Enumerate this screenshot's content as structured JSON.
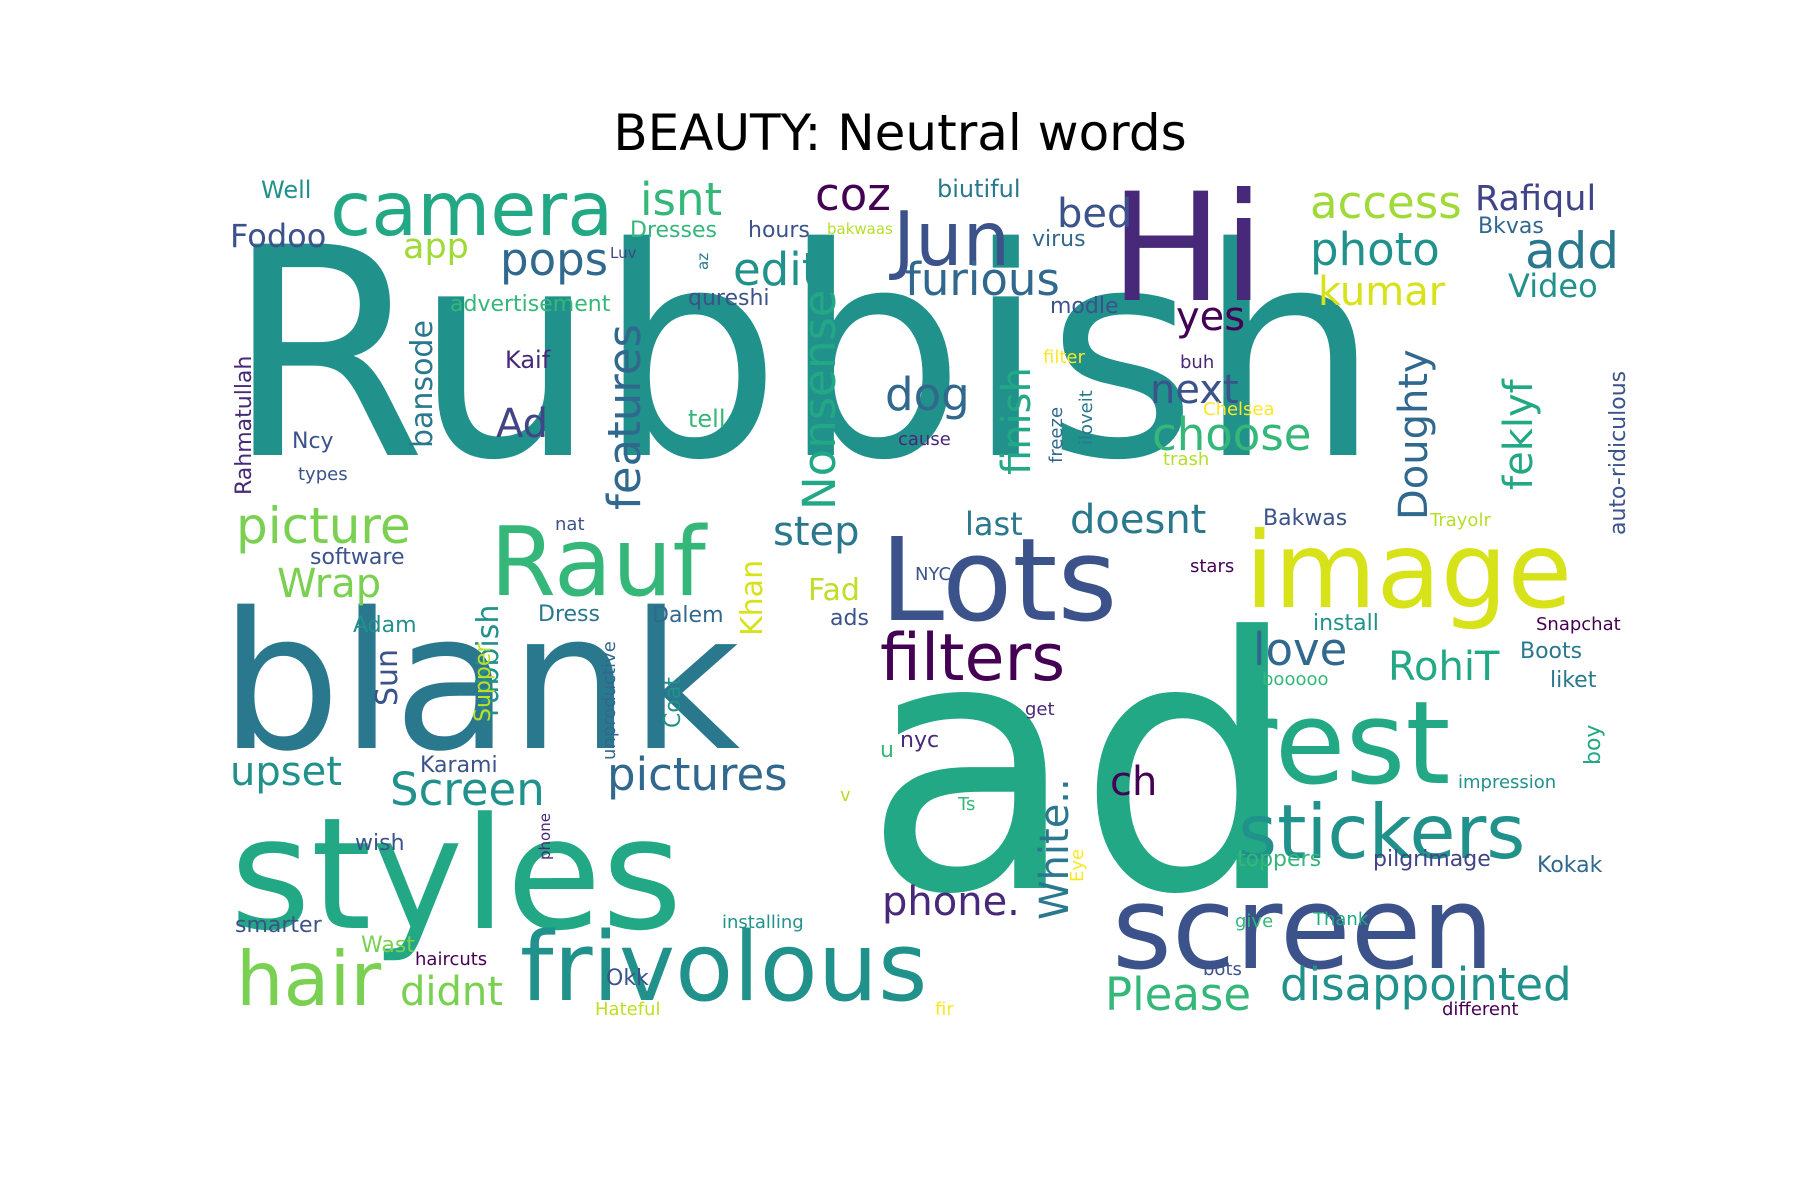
{
  "title": "BEAUTY: Neutral words",
  "words": [
    {
      "text": "Rubbish",
      "color": "#21918c"
    },
    {
      "text": "ad",
      "color": "#22a884"
    },
    {
      "text": "blank",
      "color": "#2a788e"
    },
    {
      "text": "styles",
      "color": "#22a884"
    },
    {
      "text": "Hi",
      "color": "#482878"
    },
    {
      "text": "Lots",
      "color": "#3b528b"
    },
    {
      "text": "image",
      "color": "#d8e219"
    },
    {
      "text": "screen",
      "color": "#3b528b"
    },
    {
      "text": "rest",
      "color": "#22a884"
    },
    {
      "text": "frivolous",
      "color": "#21918c"
    },
    {
      "text": "Rauf",
      "color": "#35b779"
    },
    {
      "text": "camera",
      "color": "#22a884"
    },
    {
      "text": "Jun",
      "color": "#3b528b"
    },
    {
      "text": "stickers",
      "color": "#21918c"
    },
    {
      "text": "hair",
      "color": "#7ad151"
    },
    {
      "text": "filters",
      "color": "#440154"
    },
    {
      "text": "pictures",
      "color": "#31688e"
    },
    {
      "text": "disappointed",
      "color": "#21918c"
    },
    {
      "text": "picture",
      "color": "#7ad151"
    },
    {
      "text": "Screen",
      "color": "#21918c"
    },
    {
      "text": "isnt",
      "color": "#35b779"
    },
    {
      "text": "coz",
      "color": "#440154"
    },
    {
      "text": "access",
      "color": "#a0da39"
    },
    {
      "text": "photo",
      "color": "#21918c"
    },
    {
      "text": "add",
      "color": "#2a788e"
    },
    {
      "text": "furious",
      "color": "#31688e"
    },
    {
      "text": "pops",
      "color": "#31688e"
    },
    {
      "text": "edit",
      "color": "#21918c"
    },
    {
      "text": "bed",
      "color": "#3b528b"
    },
    {
      "text": "Rafiqul",
      "color": "#414487"
    },
    {
      "text": "kumar",
      "color": "#d8e219"
    },
    {
      "text": "choose",
      "color": "#35b779"
    },
    {
      "text": "next",
      "color": "#3b528b"
    },
    {
      "text": "dog",
      "color": "#31688e"
    },
    {
      "text": "yes",
      "color": "#440154"
    },
    {
      "text": "doesnt",
      "color": "#2a788e"
    },
    {
      "text": "love",
      "color": "#31688e"
    },
    {
      "text": "RohiT",
      "color": "#22a884"
    },
    {
      "text": "Please",
      "color": "#35b779"
    },
    {
      "text": "upset",
      "color": "#21918c"
    },
    {
      "text": "phone.",
      "color": "#482878"
    },
    {
      "text": "ch",
      "color": "#440154"
    },
    {
      "text": "step",
      "color": "#2a788e"
    },
    {
      "text": "last",
      "color": "#2a788e"
    },
    {
      "text": "Wrap",
      "color": "#7ad151"
    },
    {
      "text": "didnt",
      "color": "#7ad151"
    },
    {
      "text": "Ad",
      "color": "#414487"
    },
    {
      "text": "app",
      "color": "#a0da39"
    },
    {
      "text": "Fodoo",
      "color": "#3b528b"
    },
    {
      "text": "Video",
      "color": "#21918c"
    },
    {
      "text": "features",
      "color": "#31688e"
    },
    {
      "text": "Nonsense",
      "color": "#22a884"
    },
    {
      "text": "finish",
      "color": "#22a884"
    },
    {
      "text": "White..",
      "color": "#2a788e"
    },
    {
      "text": "Doughty",
      "color": "#31688e"
    },
    {
      "text": "feklyf",
      "color": "#22a884"
    },
    {
      "text": "rubbish",
      "color": "#21918c"
    },
    {
      "text": "bansode",
      "color": "#2a788e"
    },
    {
      "text": "Khan",
      "color": "#d8e219"
    },
    {
      "text": "Sun",
      "color": "#3b528b"
    },
    {
      "text": "Fad",
      "color": "#bddf26"
    },
    {
      "text": "Well",
      "color": "#21918c"
    },
    {
      "text": "biutiful",
      "color": "#2a788e"
    },
    {
      "text": "Dresses",
      "color": "#35b779"
    },
    {
      "text": "hours",
      "color": "#3b528b"
    },
    {
      "text": "bakwaas",
      "color": "#b5de2b"
    },
    {
      "text": "virus",
      "color": "#31688e"
    },
    {
      "text": "Bkvas",
      "color": "#31688e"
    },
    {
      "text": "Luv",
      "color": "#414487"
    },
    {
      "text": "az",
      "color": "#2a788e"
    },
    {
      "text": "qureshi",
      "color": "#3b528b"
    },
    {
      "text": "advertisement",
      "color": "#35b779"
    },
    {
      "text": "modle",
      "color": "#3b528b"
    },
    {
      "text": "filter",
      "color": "#fde725"
    },
    {
      "text": "buh",
      "color": "#482878"
    },
    {
      "text": "Kaif",
      "color": "#482878"
    },
    {
      "text": "tell",
      "color": "#35b779"
    },
    {
      "text": "freeze",
      "color": "#31688e"
    },
    {
      "text": "iloveit",
      "color": "#2a788e"
    },
    {
      "text": "Chelsea",
      "color": "#fde725"
    },
    {
      "text": "cause",
      "color": "#482878"
    },
    {
      "text": "trash",
      "color": "#b5de2b"
    },
    {
      "text": "Rahmatullah",
      "color": "#482878"
    },
    {
      "text": "Ncy",
      "color": "#3b528b"
    },
    {
      "text": "types",
      "color": "#3b528b"
    },
    {
      "text": "auto-ridiculous",
      "color": "#3b528b"
    },
    {
      "text": "Bakwas",
      "color": "#3b528b"
    },
    {
      "text": "Trayolr",
      "color": "#b5de2b"
    },
    {
      "text": "nat",
      "color": "#3b528b"
    },
    {
      "text": "software",
      "color": "#3b528b"
    },
    {
      "text": "NYC",
      "color": "#3b528b"
    },
    {
      "text": "stars",
      "color": "#440154"
    },
    {
      "text": "Dress",
      "color": "#2a788e"
    },
    {
      "text": "Dalem",
      "color": "#31688e"
    },
    {
      "text": "Adam",
      "color": "#21918c"
    },
    {
      "text": "ads",
      "color": "#3b528b"
    },
    {
      "text": "install",
      "color": "#21918c"
    },
    {
      "text": "Snapchat",
      "color": "#440154"
    },
    {
      "text": "Boots",
      "color": "#2a788e"
    },
    {
      "text": "liket",
      "color": "#2a788e"
    },
    {
      "text": "booooo",
      "color": "#35b779"
    },
    {
      "text": "unproductive",
      "color": "#31688e"
    },
    {
      "text": "Supper",
      "color": "#bddf26"
    },
    {
      "text": "Coat",
      "color": "#21918c"
    },
    {
      "text": "get",
      "color": "#482878"
    },
    {
      "text": "u",
      "color": "#35b779"
    },
    {
      "text": "nyc",
      "color": "#482878"
    },
    {
      "text": "boy",
      "color": "#22a884"
    },
    {
      "text": "impression",
      "color": "#21918c"
    },
    {
      "text": "Karami",
      "color": "#3b528b"
    },
    {
      "text": "v",
      "color": "#b5de2b"
    },
    {
      "text": "Ts",
      "color": "#35b779"
    },
    {
      "text": "phone",
      "color": "#482878"
    },
    {
      "text": "wish",
      "color": "#3b528b"
    },
    {
      "text": "toppers",
      "color": "#35b779"
    },
    {
      "text": "pilgrimage",
      "color": "#414487"
    },
    {
      "text": "Kokak",
      "color": "#31688e"
    },
    {
      "text": "smarter",
      "color": "#3b528b"
    },
    {
      "text": "installing",
      "color": "#21918c"
    },
    {
      "text": "Eye",
      "color": "#fde725"
    },
    {
      "text": "give",
      "color": "#35b779"
    },
    {
      "text": "Thank",
      "color": "#22a884"
    },
    {
      "text": "Wast",
      "color": "#7ad151"
    },
    {
      "text": "haircuts",
      "color": "#440154"
    },
    {
      "text": "Okk",
      "color": "#3b528b"
    },
    {
      "text": "bots",
      "color": "#3b528b"
    },
    {
      "text": "Hateful",
      "color": "#bddf26"
    },
    {
      "text": "fir",
      "color": "#fde725"
    },
    {
      "text": "different",
      "color": "#440154"
    }
  ]
}
